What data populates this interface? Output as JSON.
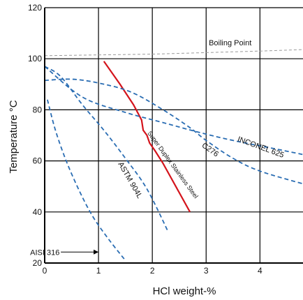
{
  "chart_data": {
    "type": "line",
    "xlabel": "HCl weight-%",
    "ylabel": "Temperature °C",
    "xlim": [
      0,
      4.8
    ],
    "ylim": [
      20,
      120
    ],
    "x_ticks": [
      "0",
      "1",
      "2",
      "3",
      "4"
    ],
    "y_ticks": [
      "20",
      "40",
      "60",
      "80",
      "100",
      "120"
    ],
    "grid": true,
    "boiling_point": {
      "label": "Boiling Point",
      "points": [
        [
          0,
          101.2
        ],
        [
          2,
          101.8
        ],
        [
          4,
          103.0
        ],
        [
          4.8,
          103.6
        ]
      ]
    },
    "series": [
      {
        "name": "AISI 316",
        "style": "dashed",
        "color": "#2a6db3",
        "points": [
          [
            0.05,
            84
          ],
          [
            0.2,
            72
          ],
          [
            0.4,
            60
          ],
          [
            0.65,
            48
          ],
          [
            0.9,
            38
          ],
          [
            1.2,
            29
          ],
          [
            1.5,
            21
          ]
        ],
        "annotation": {
          "text": "AISI 316",
          "arrow_from": [
            0.3,
            24.3
          ],
          "arrow_to": [
            1.0,
            24.3
          ]
        }
      },
      {
        "name": "ASTM 904L",
        "style": "dashed",
        "color": "#2a6db3",
        "points": [
          [
            0,
            97
          ],
          [
            0.3,
            93
          ],
          [
            0.7,
            82
          ],
          [
            1.1,
            72
          ],
          [
            1.5,
            61
          ],
          [
            1.9,
            49
          ],
          [
            2.3,
            32
          ]
        ]
      },
      {
        "name": "Super Duplex Stainless Steel",
        "style": "solid",
        "color": "#d4141c",
        "points": [
          [
            1.1,
            99
          ],
          [
            1.4,
            90
          ],
          [
            1.65,
            82
          ],
          [
            1.8,
            76
          ],
          [
            1.83,
            72
          ],
          [
            1.9,
            70
          ],
          [
            1.95,
            67
          ],
          [
            2.05,
            64
          ],
          [
            2.2,
            59
          ],
          [
            2.7,
            40
          ]
        ]
      },
      {
        "name": "C276",
        "style": "dashed",
        "color": "#2a6db3",
        "points": [
          [
            0,
            91.5
          ],
          [
            0.5,
            92
          ],
          [
            1.0,
            90.5
          ],
          [
            1.6,
            87
          ],
          [
            2.2,
            80
          ],
          [
            2.7,
            73
          ],
          [
            3.0,
            68
          ],
          [
            3.5,
            61
          ],
          [
            4.0,
            56
          ],
          [
            4.8,
            51
          ]
        ]
      },
      {
        "name": "INCONEL 625",
        "style": "dashed",
        "color": "#2a6db3",
        "points": [
          [
            0,
            97
          ],
          [
            0.7,
            85
          ],
          [
            1.5,
            79
          ],
          [
            2.2,
            75
          ],
          [
            2.9,
            71
          ],
          [
            3.5,
            68
          ],
          [
            4.1,
            65.5
          ],
          [
            4.8,
            62.5
          ]
        ]
      }
    ],
    "annotations": [
      {
        "text": "ASTM 904L",
        "x": 1.55,
        "y": 52,
        "angle": 60
      },
      {
        "text": "Super Duplex Stainless Steel",
        "x": 2.35,
        "y": 58,
        "angle": 54
      },
      {
        "text": "C276",
        "x": 3.05,
        "y": 63.6,
        "angle": 35
      },
      {
        "text": "INCONEL 625",
        "x": 4.0,
        "y": 64.5,
        "angle": 20
      }
    ]
  }
}
